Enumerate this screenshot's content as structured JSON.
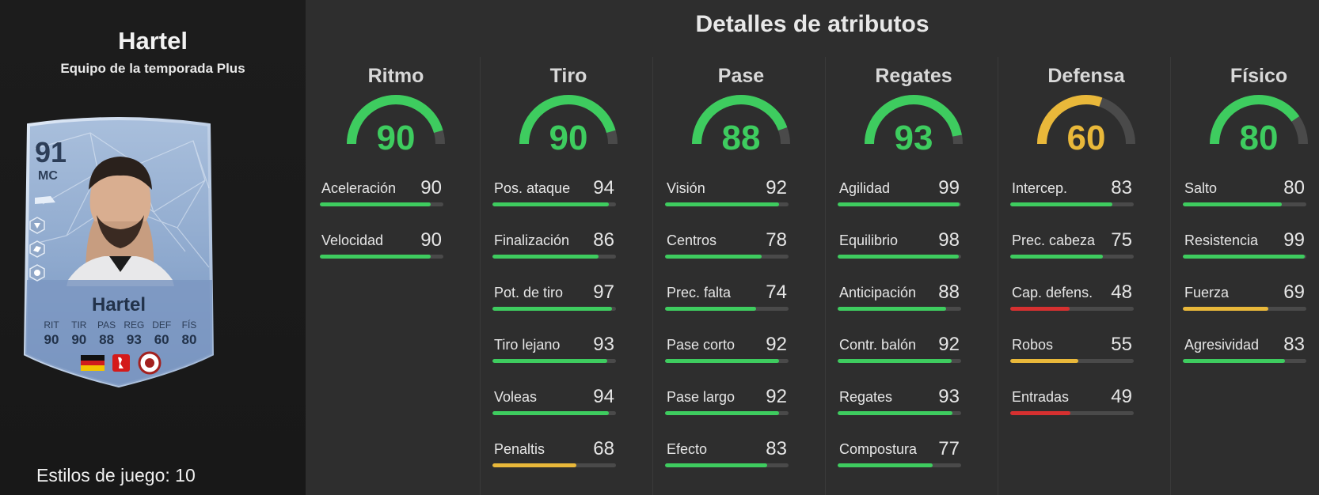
{
  "player": {
    "name": "Hartel",
    "subtitle": "Equipo de la temporada Plus",
    "playstyles": "Estilos de juego: 10"
  },
  "card": {
    "rating": "91",
    "position": "MC",
    "name": "Hartel",
    "stats": [
      {
        "label": "RIT",
        "value": "90"
      },
      {
        "label": "TIR",
        "value": "90"
      },
      {
        "label": "PAS",
        "value": "88"
      },
      {
        "label": "REG",
        "value": "93"
      },
      {
        "label": "DEF",
        "value": "60"
      },
      {
        "label": "FÍS",
        "value": "80"
      }
    ]
  },
  "page": {
    "title": "Detalles de atributos"
  },
  "colors": {
    "green": "#3ecc5f",
    "yellow": "#e9b83a",
    "red": "#d63030",
    "track": "#4a4a4a"
  },
  "categories": [
    {
      "title": "Ritmo",
      "value": "90",
      "attributes": [
        {
          "name": "Aceleración",
          "value": "90"
        },
        {
          "name": "Velocidad",
          "value": "90"
        }
      ]
    },
    {
      "title": "Tiro",
      "value": "90",
      "attributes": [
        {
          "name": "Pos. ataque",
          "value": "94"
        },
        {
          "name": "Finalización",
          "value": "86"
        },
        {
          "name": "Pot. de tiro",
          "value": "97"
        },
        {
          "name": "Tiro lejano",
          "value": "93"
        },
        {
          "name": "Voleas",
          "value": "94"
        },
        {
          "name": "Penaltis",
          "value": "68"
        }
      ]
    },
    {
      "title": "Pase",
      "value": "88",
      "attributes": [
        {
          "name": "Visión",
          "value": "92"
        },
        {
          "name": "Centros",
          "value": "78"
        },
        {
          "name": "Prec. falta",
          "value": "74"
        },
        {
          "name": "Pase corto",
          "value": "92"
        },
        {
          "name": "Pase largo",
          "value": "92"
        },
        {
          "name": "Efecto",
          "value": "83"
        }
      ]
    },
    {
      "title": "Regates",
      "value": "93",
      "attributes": [
        {
          "name": "Agilidad",
          "value": "99"
        },
        {
          "name": "Equilibrio",
          "value": "98"
        },
        {
          "name": "Anticipación",
          "value": "88"
        },
        {
          "name": "Contr. balón",
          "value": "92"
        },
        {
          "name": "Regates",
          "value": "93"
        },
        {
          "name": "Compostura",
          "value": "77"
        }
      ]
    },
    {
      "title": "Defensa",
      "value": "60",
      "attributes": [
        {
          "name": "Intercep.",
          "value": "83"
        },
        {
          "name": "Prec. cabeza",
          "value": "75"
        },
        {
          "name": "Cap. defens.",
          "value": "48"
        },
        {
          "name": "Robos",
          "value": "55"
        },
        {
          "name": "Entradas",
          "value": "49"
        }
      ]
    },
    {
      "title": "Físico",
      "value": "80",
      "attributes": [
        {
          "name": "Salto",
          "value": "80"
        },
        {
          "name": "Resistencia",
          "value": "99"
        },
        {
          "name": "Fuerza",
          "value": "69"
        },
        {
          "name": "Agresividad",
          "value": "83"
        }
      ]
    }
  ]
}
